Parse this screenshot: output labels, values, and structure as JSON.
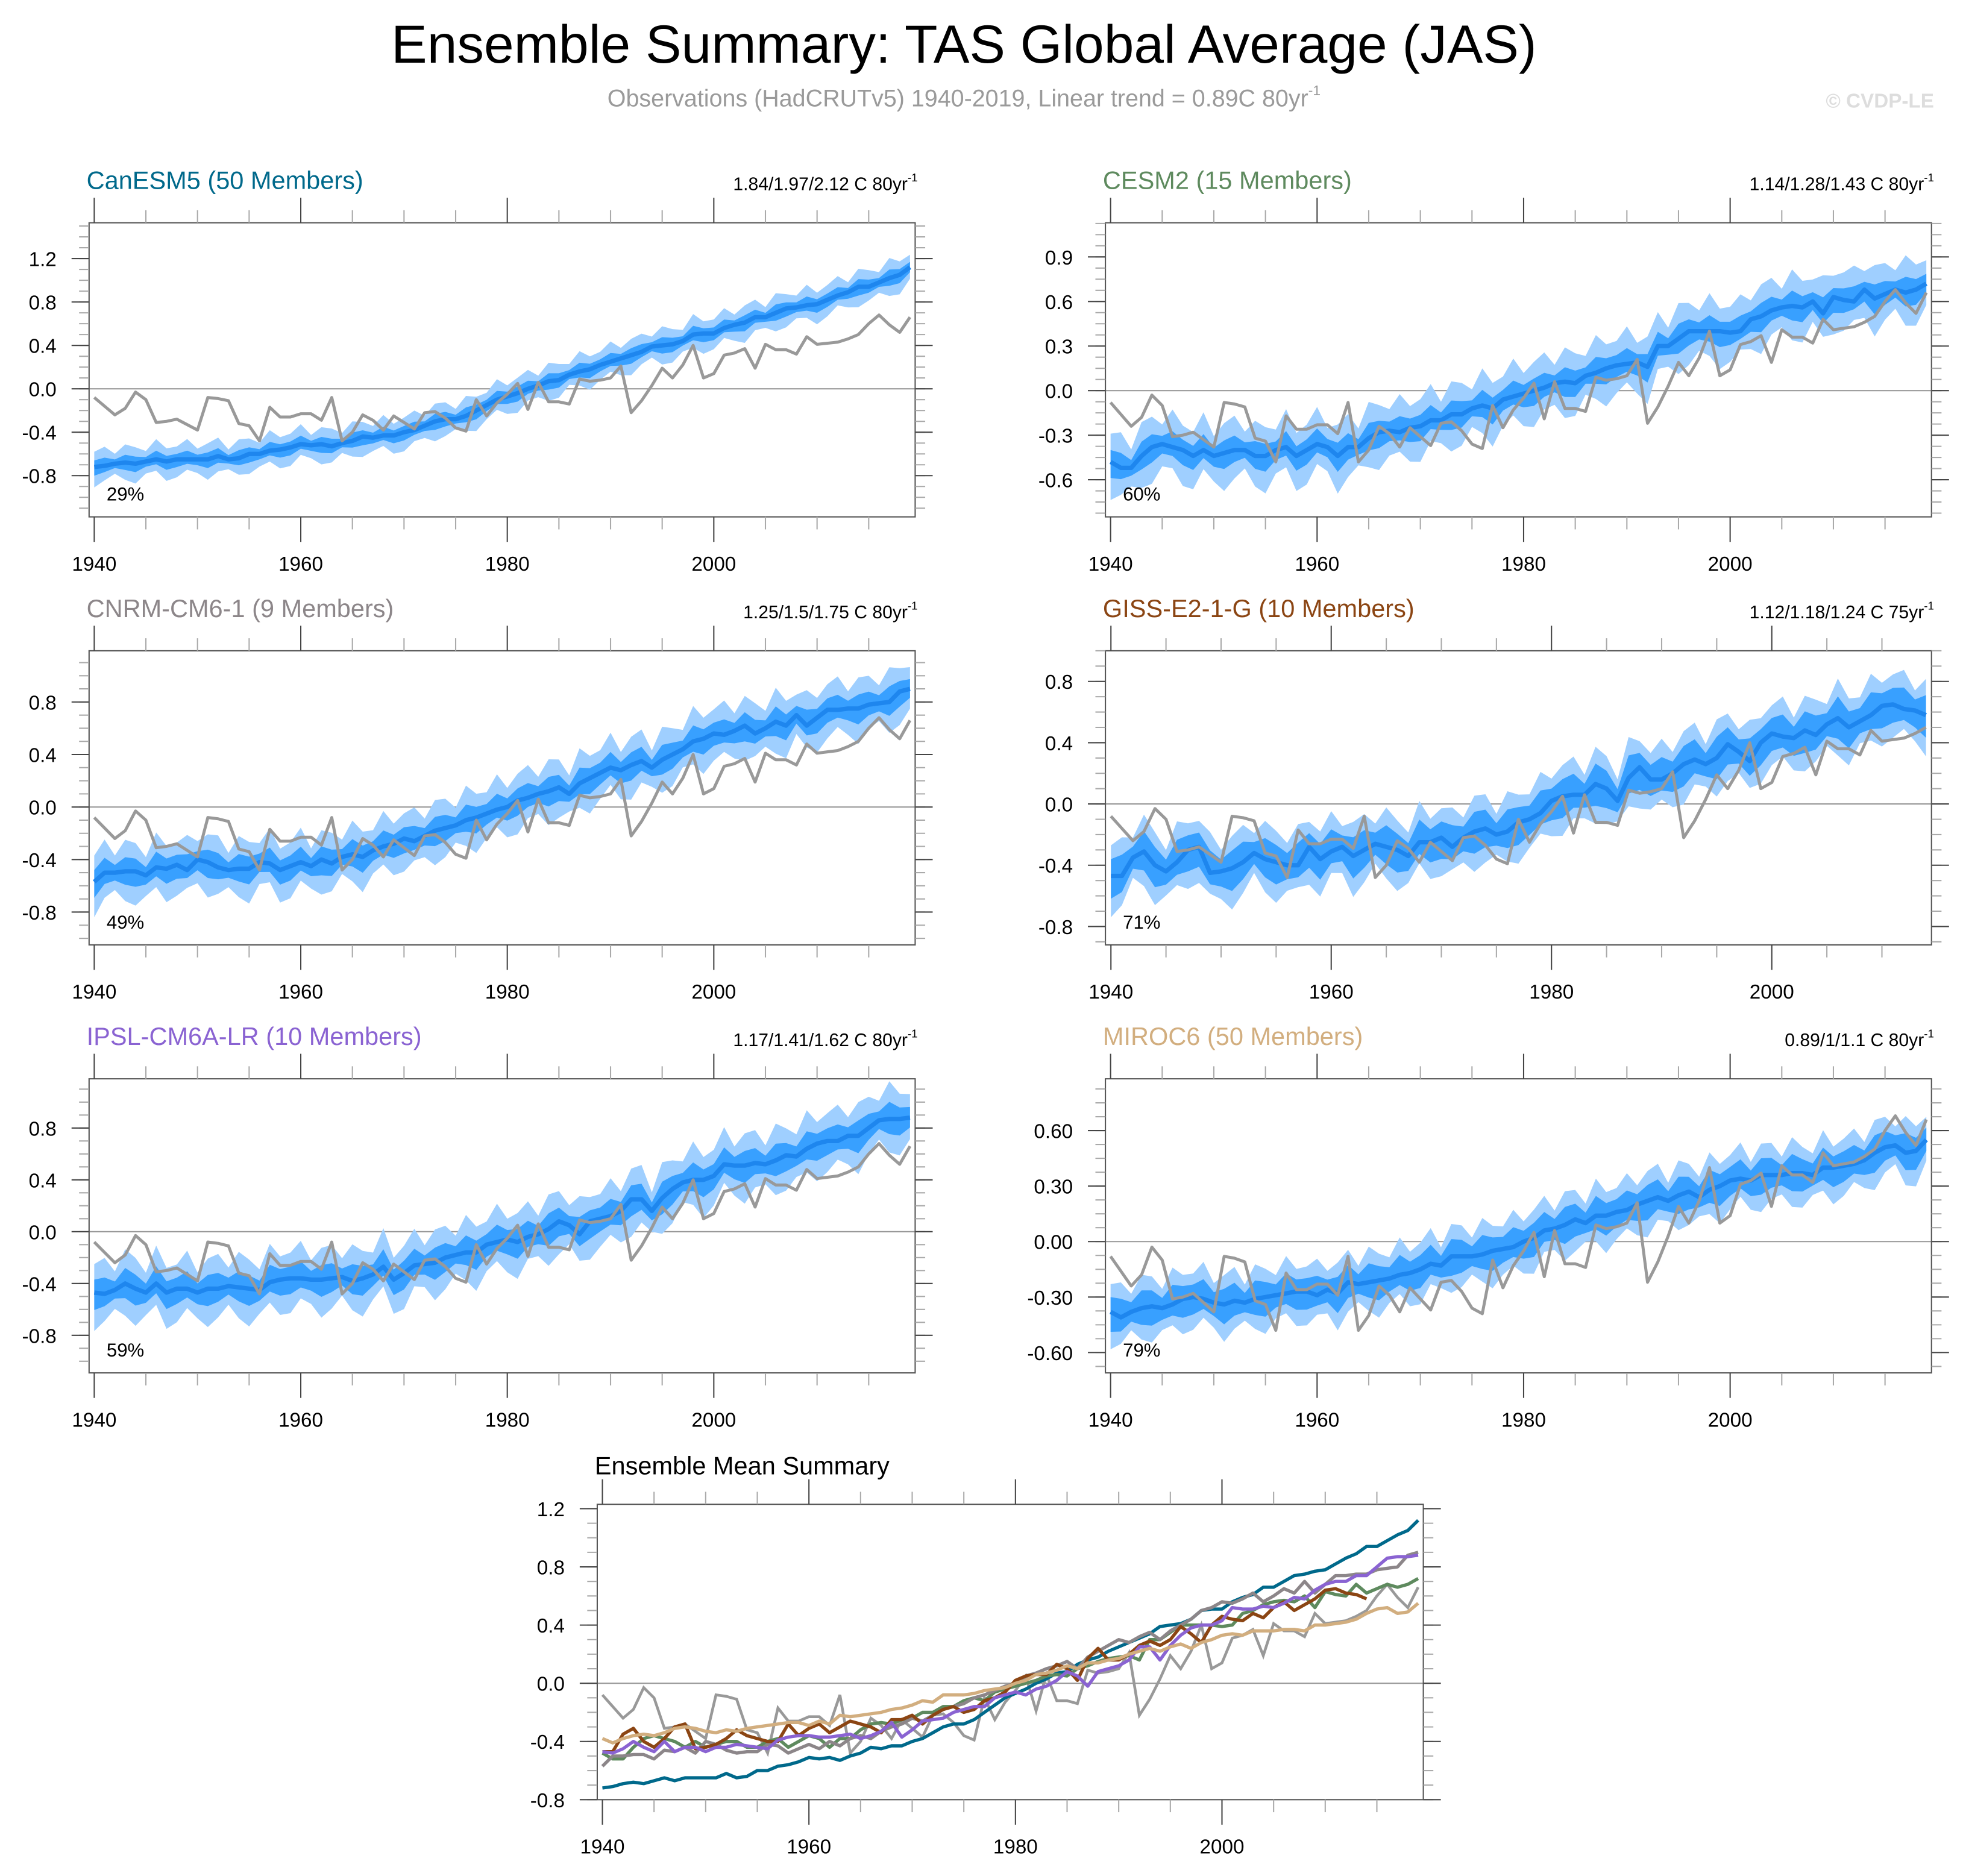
{
  "header": {
    "title": "Ensemble Summary: TAS Global Average (JAS)",
    "subtitle": "Observations (HadCRUTv5) 1940-2019, Linear trend = 0.89C 80yr",
    "subtitle_sup": "-1",
    "copyright": "© CVDP-LE"
  },
  "colors": {
    "band_outer": "#9fcfff",
    "band_inner": "#38a0ff",
    "ensemble_mean_line": "#1e86ee",
    "observations_line": "#999999",
    "zero_line": "#999999"
  },
  "chart_data": [
    {
      "type": "area",
      "model": "CanESM5",
      "title": "CanESM5 (50 Members)",
      "title_color": "#00698b",
      "trend_text": "1.84/1.97/2.12 C 80yr",
      "trend_sup": "-1",
      "percent_label": "29%",
      "xlim": [
        1939.5,
        2019.5
      ],
      "ylim": [
        -1.18,
        1.53
      ],
      "yticks": [
        "1.2",
        "0.8",
        "0.4",
        "0.0",
        "-0.4",
        "-0.8"
      ],
      "ytick_values": [
        1.2,
        0.8,
        0.4,
        0,
        -0.4,
        -0.8
      ],
      "xticks": [
        "1940",
        "1960",
        "1980",
        "2000"
      ],
      "band_inner_halfwidth": 0.06,
      "band_outer_halfwidth": 0.14,
      "start_year": 1940,
      "mean": [
        -0.72,
        -0.71,
        -0.69,
        -0.68,
        -0.69,
        -0.67,
        -0.65,
        -0.67,
        -0.65,
        -0.65,
        -0.65,
        -0.65,
        -0.62,
        -0.65,
        -0.64,
        -0.6,
        -0.6,
        -0.57,
        -0.56,
        -0.54,
        -0.51,
        -0.52,
        -0.51,
        -0.53,
        -0.5,
        -0.48,
        -0.44,
        -0.45,
        -0.43,
        -0.43,
        -0.4,
        -0.38,
        -0.34,
        -0.3,
        -0.28,
        -0.28,
        -0.25,
        -0.2,
        -0.15,
        -0.1,
        -0.07,
        -0.04,
        0.0,
        0.03,
        0.07,
        0.08,
        0.13,
        0.16,
        0.18,
        0.22,
        0.25,
        0.28,
        0.31,
        0.34,
        0.39,
        0.4,
        0.41,
        0.44,
        0.5,
        0.51,
        0.51,
        0.56,
        0.59,
        0.61,
        0.66,
        0.66,
        0.7,
        0.74,
        0.75,
        0.77,
        0.78,
        0.82,
        0.86,
        0.89,
        0.94,
        0.94,
        0.98,
        1.02,
        1.05,
        1.12
      ]
    },
    {
      "type": "area",
      "model": "CESM2",
      "title": "CESM2 (15 Members)",
      "title_color": "#5e8a5e",
      "trend_text": "1.14/1.28/1.43 C 80yr",
      "trend_sup": "-1",
      "percent_label": "60%",
      "xlim": [
        1939.5,
        2019.5
      ],
      "ylim": [
        -0.85,
        1.13
      ],
      "yticks": [
        "0.9",
        "0.6",
        "0.3",
        "0.0",
        "-0.3",
        "-0.6"
      ],
      "ytick_values": [
        0.9,
        0.6,
        0.3,
        0,
        -0.3,
        -0.6
      ],
      "xticks": [
        "1940",
        "1960",
        "1980",
        "2000"
      ],
      "band_inner_halfwidth": 0.08,
      "band_outer_halfwidth": 0.19,
      "start_year": 1940,
      "mean": [
        -0.48,
        -0.52,
        -0.52,
        -0.44,
        -0.38,
        -0.36,
        -0.38,
        -0.4,
        -0.44,
        -0.4,
        -0.44,
        -0.42,
        -0.4,
        -0.4,
        -0.44,
        -0.44,
        -0.4,
        -0.38,
        -0.44,
        -0.4,
        -0.36,
        -0.38,
        -0.44,
        -0.38,
        -0.38,
        -0.32,
        -0.28,
        -0.27,
        -0.28,
        -0.25,
        -0.24,
        -0.2,
        -0.2,
        -0.16,
        -0.16,
        -0.12,
        -0.1,
        -0.12,
        -0.06,
        -0.04,
        -0.02,
        0.0,
        0.02,
        0.05,
        0.06,
        0.05,
        0.1,
        0.12,
        0.15,
        0.17,
        0.18,
        0.19,
        0.16,
        0.3,
        0.3,
        0.35,
        0.4,
        0.4,
        0.4,
        0.4,
        0.39,
        0.4,
        0.48,
        0.5,
        0.54,
        0.56,
        0.57,
        0.56,
        0.6,
        0.52,
        0.63,
        0.61,
        0.6,
        0.68,
        0.62,
        0.65,
        0.68,
        0.66,
        0.68,
        0.72
      ]
    },
    {
      "type": "area",
      "model": "CNRM-CM6-1",
      "title": "CNRM-CM6-1 (9 Members)",
      "title_color": "#8c8689",
      "trend_text": "1.25/1.5/1.75 C 80yr",
      "trend_sup": "-1",
      "percent_label": "49%",
      "xlim": [
        1939.5,
        2019.5
      ],
      "ylim": [
        -1.05,
        1.19
      ],
      "yticks": [
        "0.8",
        "0.4",
        "0.0",
        "-0.4",
        "-0.8"
      ],
      "ytick_values": [
        0.8,
        0.4,
        0,
        -0.4,
        -0.8
      ],
      "xticks": [
        "1940",
        "1960",
        "1980",
        "2000"
      ],
      "band_inner_halfwidth": 0.09,
      "band_outer_halfwidth": 0.2,
      "start_year": 1940,
      "mean": [
        -0.57,
        -0.5,
        -0.5,
        -0.49,
        -0.49,
        -0.52,
        -0.46,
        -0.47,
        -0.44,
        -0.48,
        -0.4,
        -0.42,
        -0.46,
        -0.48,
        -0.47,
        -0.47,
        -0.42,
        -0.43,
        -0.48,
        -0.45,
        -0.42,
        -0.45,
        -0.4,
        -0.43,
        -0.38,
        -0.36,
        -0.38,
        -0.33,
        -0.3,
        -0.28,
        -0.24,
        -0.26,
        -0.22,
        -0.18,
        -0.16,
        -0.14,
        -0.1,
        -0.08,
        -0.05,
        -0.02,
        0.0,
        0.05,
        0.07,
        0.1,
        0.12,
        0.15,
        0.1,
        0.18,
        0.22,
        0.26,
        0.3,
        0.28,
        0.32,
        0.35,
        0.3,
        0.36,
        0.4,
        0.44,
        0.5,
        0.52,
        0.56,
        0.55,
        0.58,
        0.62,
        0.56,
        0.6,
        0.65,
        0.62,
        0.7,
        0.62,
        0.68,
        0.74,
        0.74,
        0.75,
        0.75,
        0.78,
        0.79,
        0.8,
        0.88,
        0.9
      ]
    },
    {
      "type": "area",
      "model": "GISS-E2-1-G",
      "title": "GISS-E2-1-G (10 Members)",
      "title_color": "#8b4513",
      "trend_text": "1.12/1.18/1.24 C 75yr",
      "trend_sup": "-1",
      "percent_label": "71%",
      "xlim": [
        1939.5,
        2014.5
      ],
      "ylim": [
        -0.92,
        1.0
      ],
      "yticks": [
        "0.8",
        "0.4",
        "0.0",
        "-0.4",
        "-0.8"
      ],
      "ytick_values": [
        0.8,
        0.4,
        0,
        -0.4,
        -0.8
      ],
      "xticks": [
        "1940",
        "1960",
        "1980",
        "2000"
      ],
      "band_inner_halfwidth": 0.11,
      "band_outer_halfwidth": 0.2,
      "start_year": 1940,
      "mean": [
        -0.47,
        -0.47,
        -0.35,
        -0.31,
        -0.4,
        -0.44,
        -0.38,
        -0.3,
        -0.28,
        -0.45,
        -0.44,
        -0.42,
        -0.38,
        -0.32,
        -0.36,
        -0.38,
        -0.4,
        -0.4,
        -0.28,
        -0.36,
        -0.31,
        -0.28,
        -0.34,
        -0.3,
        -0.26,
        -0.28,
        -0.3,
        -0.34,
        -0.25,
        -0.25,
        -0.22,
        -0.28,
        -0.22,
        -0.18,
        -0.16,
        -0.2,
        -0.18,
        -0.12,
        -0.1,
        -0.06,
        0.02,
        0.05,
        0.06,
        0.06,
        0.13,
        0.1,
        0.02,
        0.17,
        0.24,
        0.16,
        0.16,
        0.2,
        0.26,
        0.29,
        0.26,
        0.3,
        0.39,
        0.34,
        0.28,
        0.4,
        0.46,
        0.44,
        0.43,
        0.48,
        0.45,
        0.52,
        0.56,
        0.5,
        0.54,
        0.58,
        0.64,
        0.65,
        0.62,
        0.61,
        0.58
      ]
    },
    {
      "type": "area",
      "model": "IPSL-CM6A-LR",
      "title": "IPSL-CM6A-LR (10 Members)",
      "title_color": "#8a63d2",
      "trend_text": "1.17/1.41/1.62 C 80yr",
      "trend_sup": "-1",
      "percent_label": "59%",
      "xlim": [
        1939.5,
        2019.5
      ],
      "ylim": [
        -1.09,
        1.18
      ],
      "yticks": [
        "0.8",
        "0.4",
        "0.0",
        "-0.4",
        "-0.8"
      ],
      "ytick_values": [
        0.8,
        0.4,
        0,
        -0.4,
        -0.8
      ],
      "xticks": [
        "1940",
        "1960",
        "1980",
        "2000"
      ],
      "band_inner_halfwidth": 0.1,
      "band_outer_halfwidth": 0.22,
      "start_year": 1940,
      "mean": [
        -0.47,
        -0.48,
        -0.45,
        -0.4,
        -0.44,
        -0.47,
        -0.4,
        -0.47,
        -0.44,
        -0.44,
        -0.47,
        -0.44,
        -0.44,
        -0.42,
        -0.43,
        -0.44,
        -0.45,
        -0.39,
        -0.37,
        -0.36,
        -0.36,
        -0.37,
        -0.37,
        -0.36,
        -0.35,
        -0.38,
        -0.36,
        -0.33,
        -0.27,
        -0.37,
        -0.32,
        -0.26,
        -0.25,
        -0.24,
        -0.2,
        -0.18,
        -0.16,
        -0.16,
        -0.1,
        -0.08,
        -0.06,
        -0.08,
        -0.04,
        -0.02,
        0.02,
        0.08,
        0.05,
        -0.02,
        0.08,
        0.1,
        0.12,
        0.16,
        0.25,
        0.25,
        0.16,
        0.26,
        0.33,
        0.38,
        0.4,
        0.4,
        0.43,
        0.52,
        0.51,
        0.51,
        0.53,
        0.52,
        0.55,
        0.59,
        0.58,
        0.64,
        0.68,
        0.7,
        0.7,
        0.74,
        0.74,
        0.8,
        0.86,
        0.87,
        0.87,
        0.88
      ]
    },
    {
      "type": "area",
      "model": "MIROC6",
      "title": "MIROC6 (50 Members)",
      "title_color": "#d2ae7f",
      "trend_text": "0.89/1/1.1 C 80yr",
      "trend_sup": "-1",
      "percent_label": "79%",
      "xlim": [
        1939.5,
        2019.5
      ],
      "ylim": [
        -0.71,
        0.88
      ],
      "yticks": [
        "0.60",
        "0.30",
        "0.00",
        "-0.30",
        "-0.60"
      ],
      "ytick_values": [
        0.6,
        0.3,
        0,
        -0.3,
        -0.6
      ],
      "xticks": [
        "1940",
        "1960",
        "1980",
        "2000"
      ],
      "band_inner_halfwidth": 0.08,
      "band_outer_halfwidth": 0.15,
      "start_year": 1940,
      "mean": [
        -0.38,
        -0.41,
        -0.38,
        -0.36,
        -0.35,
        -0.36,
        -0.34,
        -0.31,
        -0.3,
        -0.31,
        -0.33,
        -0.34,
        -0.32,
        -0.33,
        -0.31,
        -0.3,
        -0.29,
        -0.28,
        -0.27,
        -0.27,
        -0.29,
        -0.26,
        -0.28,
        -0.22,
        -0.23,
        -0.22,
        -0.21,
        -0.2,
        -0.18,
        -0.17,
        -0.15,
        -0.12,
        -0.13,
        -0.08,
        -0.08,
        -0.08,
        -0.07,
        -0.05,
        -0.04,
        -0.03,
        0.0,
        0.02,
        0.06,
        0.07,
        0.09,
        0.12,
        0.1,
        0.14,
        0.14,
        0.16,
        0.17,
        0.2,
        0.22,
        0.24,
        0.22,
        0.25,
        0.27,
        0.24,
        0.28,
        0.3,
        0.33,
        0.34,
        0.33,
        0.36,
        0.36,
        0.36,
        0.37,
        0.37,
        0.36,
        0.4,
        0.4,
        0.41,
        0.42,
        0.44,
        0.48,
        0.51,
        0.52,
        0.48,
        0.49,
        0.55
      ]
    },
    {
      "type": "line",
      "title": "Ensemble Mean Summary",
      "xlim": [
        1939.5,
        2019.5
      ],
      "ylim": [
        -0.8,
        1.23
      ],
      "yticks": [
        "1.2",
        "0.8",
        "0.4",
        "0.0",
        "-0.4",
        "-0.8"
      ],
      "ytick_values": [
        1.2,
        0.8,
        0.4,
        0,
        -0.4,
        -0.8
      ],
      "xticks": [
        "1940",
        "1960",
        "1980",
        "2000"
      ],
      "series_models": [
        "CanESM5",
        "CESM2",
        "CNRM-CM6-1",
        "GISS-E2-1-G",
        "IPSL-CM6A-LR",
        "MIROC6"
      ]
    }
  ],
  "observations": {
    "start_year": 1940,
    "values": [
      -0.08,
      -0.16,
      -0.24,
      -0.18,
      -0.03,
      -0.1,
      -0.31,
      -0.3,
      -0.28,
      -0.33,
      -0.38,
      -0.08,
      -0.09,
      -0.11,
      -0.32,
      -0.34,
      -0.48,
      -0.17,
      -0.26,
      -0.26,
      -0.23,
      -0.23,
      -0.29,
      -0.08,
      -0.48,
      -0.4,
      -0.24,
      -0.29,
      -0.38,
      -0.25,
      -0.31,
      -0.37,
      -0.22,
      -0.21,
      -0.27,
      -0.36,
      -0.39,
      -0.1,
      -0.25,
      -0.13,
      -0.05,
      0.05,
      -0.19,
      0.06,
      -0.12,
      -0.12,
      -0.14,
      0.09,
      0.07,
      0.08,
      0.1,
      0.21,
      -0.22,
      -0.11,
      0.03,
      0.19,
      0.1,
      0.22,
      0.4,
      0.1,
      0.14,
      0.31,
      0.33,
      0.37,
      0.19,
      0.41,
      0.36,
      0.36,
      0.32,
      0.48,
      0.41,
      0.42,
      0.43,
      0.46,
      0.5,
      0.6,
      0.68,
      0.59,
      0.52,
      0.66
    ]
  }
}
